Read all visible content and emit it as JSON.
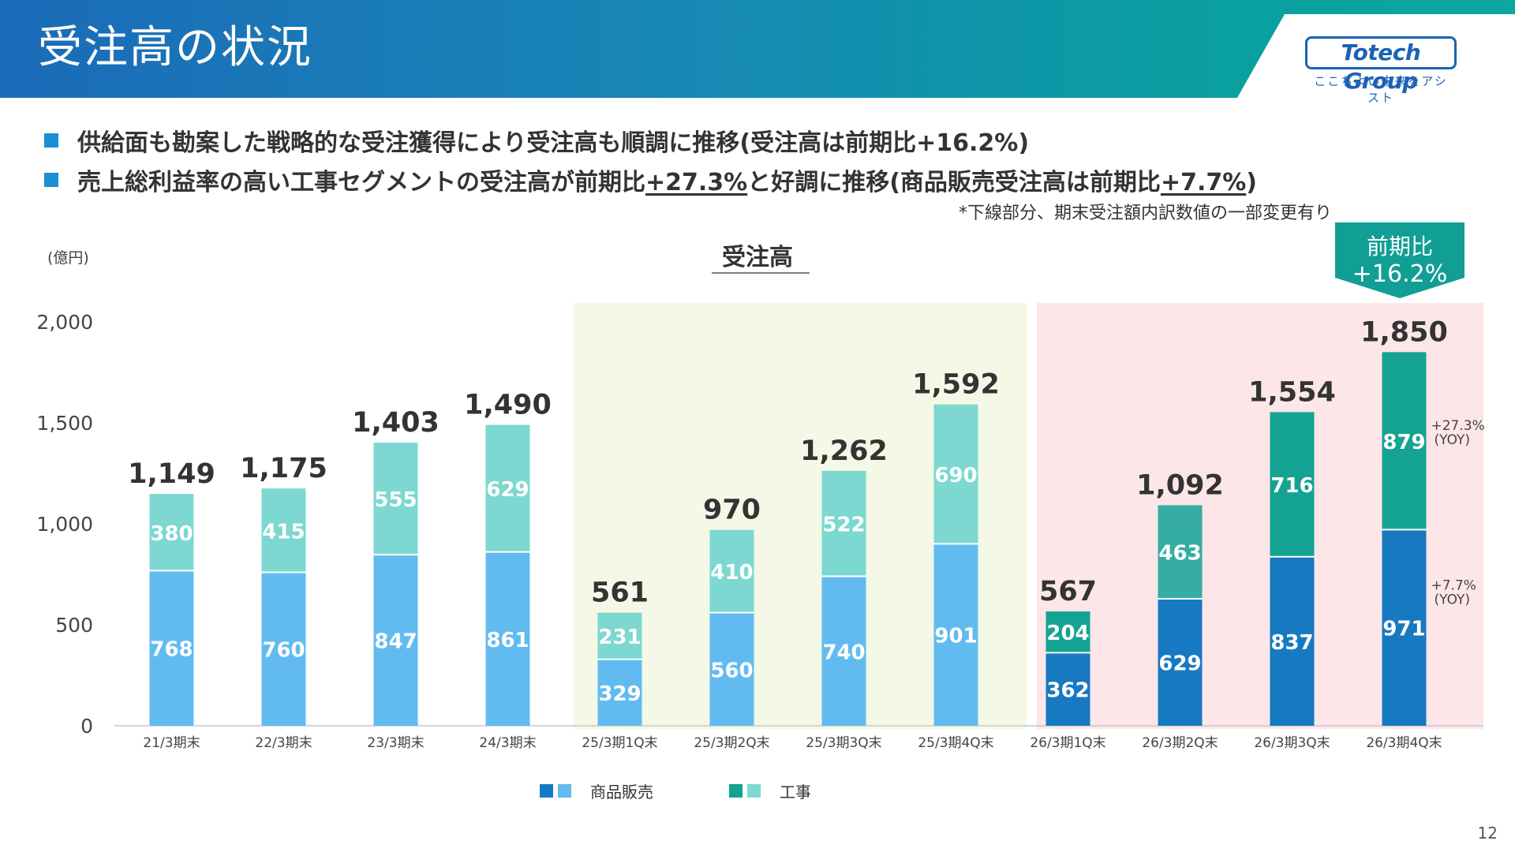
{
  "header": {
    "title": "受注高の状況",
    "logo": "Totech Group",
    "logo_tagline": "ここちよい未来をアシスト"
  },
  "bullets": [
    {
      "segments": [
        {
          "text": "供給面も勘案した戦略的な受注獲得により受注高も順調に推移(受注高は前期比+16.2%)",
          "underline": false
        }
      ]
    },
    {
      "segments": [
        {
          "text": "売上総利益率の高い工事セグメントの受注高が前期比",
          "underline": false
        },
        {
          "text": "+27.3%",
          "underline": true
        },
        {
          "text": "と好調に推移(商品販売受注高は前期比",
          "underline": false
        },
        {
          "text": "+7.7%",
          "underline": true
        },
        {
          "text": ")",
          "underline": false
        }
      ]
    }
  ],
  "footnote": "*下線部分、期末受注額内訳数値の一部変更有り",
  "page_number": "12",
  "colors": {
    "sales_light": "#62bbf0",
    "sales_dark": "#1779c2",
    "construction_light": "#7cd8d0",
    "construction_dark": "#14a392",
    "construction_mid": "#35ada2",
    "band_green": "#f3f9e6",
    "band_pink": "#fde6e8",
    "callout": "#119e94",
    "accent_bullet": "#1a8fd6"
  },
  "legend": {
    "sales": "商品販売",
    "construction": "工事"
  },
  "chart_data": {
    "type": "bar",
    "stacked": true,
    "title": "受注高",
    "unit_label": "(億円)",
    "ylim": [
      0,
      2000
    ],
    "yticks": [
      "0",
      "500",
      "1,000",
      "1,500",
      "2,000"
    ],
    "categories": [
      "21/3期末",
      "22/3期末",
      "23/3期末",
      "24/3期末",
      "25/3期1Q末",
      "25/3期2Q末",
      "25/3期3Q末",
      "25/3期4Q末",
      "26/3期1Q末",
      "26/3期2Q末",
      "26/3期3Q末",
      "26/3期4Q末"
    ],
    "series": [
      {
        "name": "商品販売",
        "values": [
          768,
          760,
          847,
          861,
          329,
          560,
          740,
          901,
          362,
          629,
          837,
          971
        ]
      },
      {
        "name": "工事",
        "values": [
          380,
          415,
          555,
          629,
          231,
          410,
          522,
          690,
          204,
          463,
          716,
          879
        ]
      }
    ],
    "totals": [
      "1,149",
      "1,175",
      "1,403",
      "1,490",
      "561",
      "970",
      "1,262",
      "1,592",
      "567",
      "1,092",
      "1,554",
      "1,850"
    ],
    "yoy_annotations": [
      {
        "category": "26/3期4Q末",
        "series": "工事",
        "text": "+27.3%",
        "subtext": "(YOY)"
      },
      {
        "category": "26/3期4Q末",
        "series": "商品販売",
        "text": "+7.7%",
        "subtext": "(YOY)"
      }
    ],
    "callout": {
      "line1": "前期比",
      "line2": "+16.2%"
    },
    "highlight_bands": [
      {
        "from": "25/3期1Q末",
        "to": "25/3期4Q末",
        "color": "#f3f9e6"
      },
      {
        "from": "26/3期1Q末",
        "to": "26/3期4Q末",
        "color": "#fde6e8"
      }
    ],
    "grid": false,
    "legend_position": "bottom"
  }
}
